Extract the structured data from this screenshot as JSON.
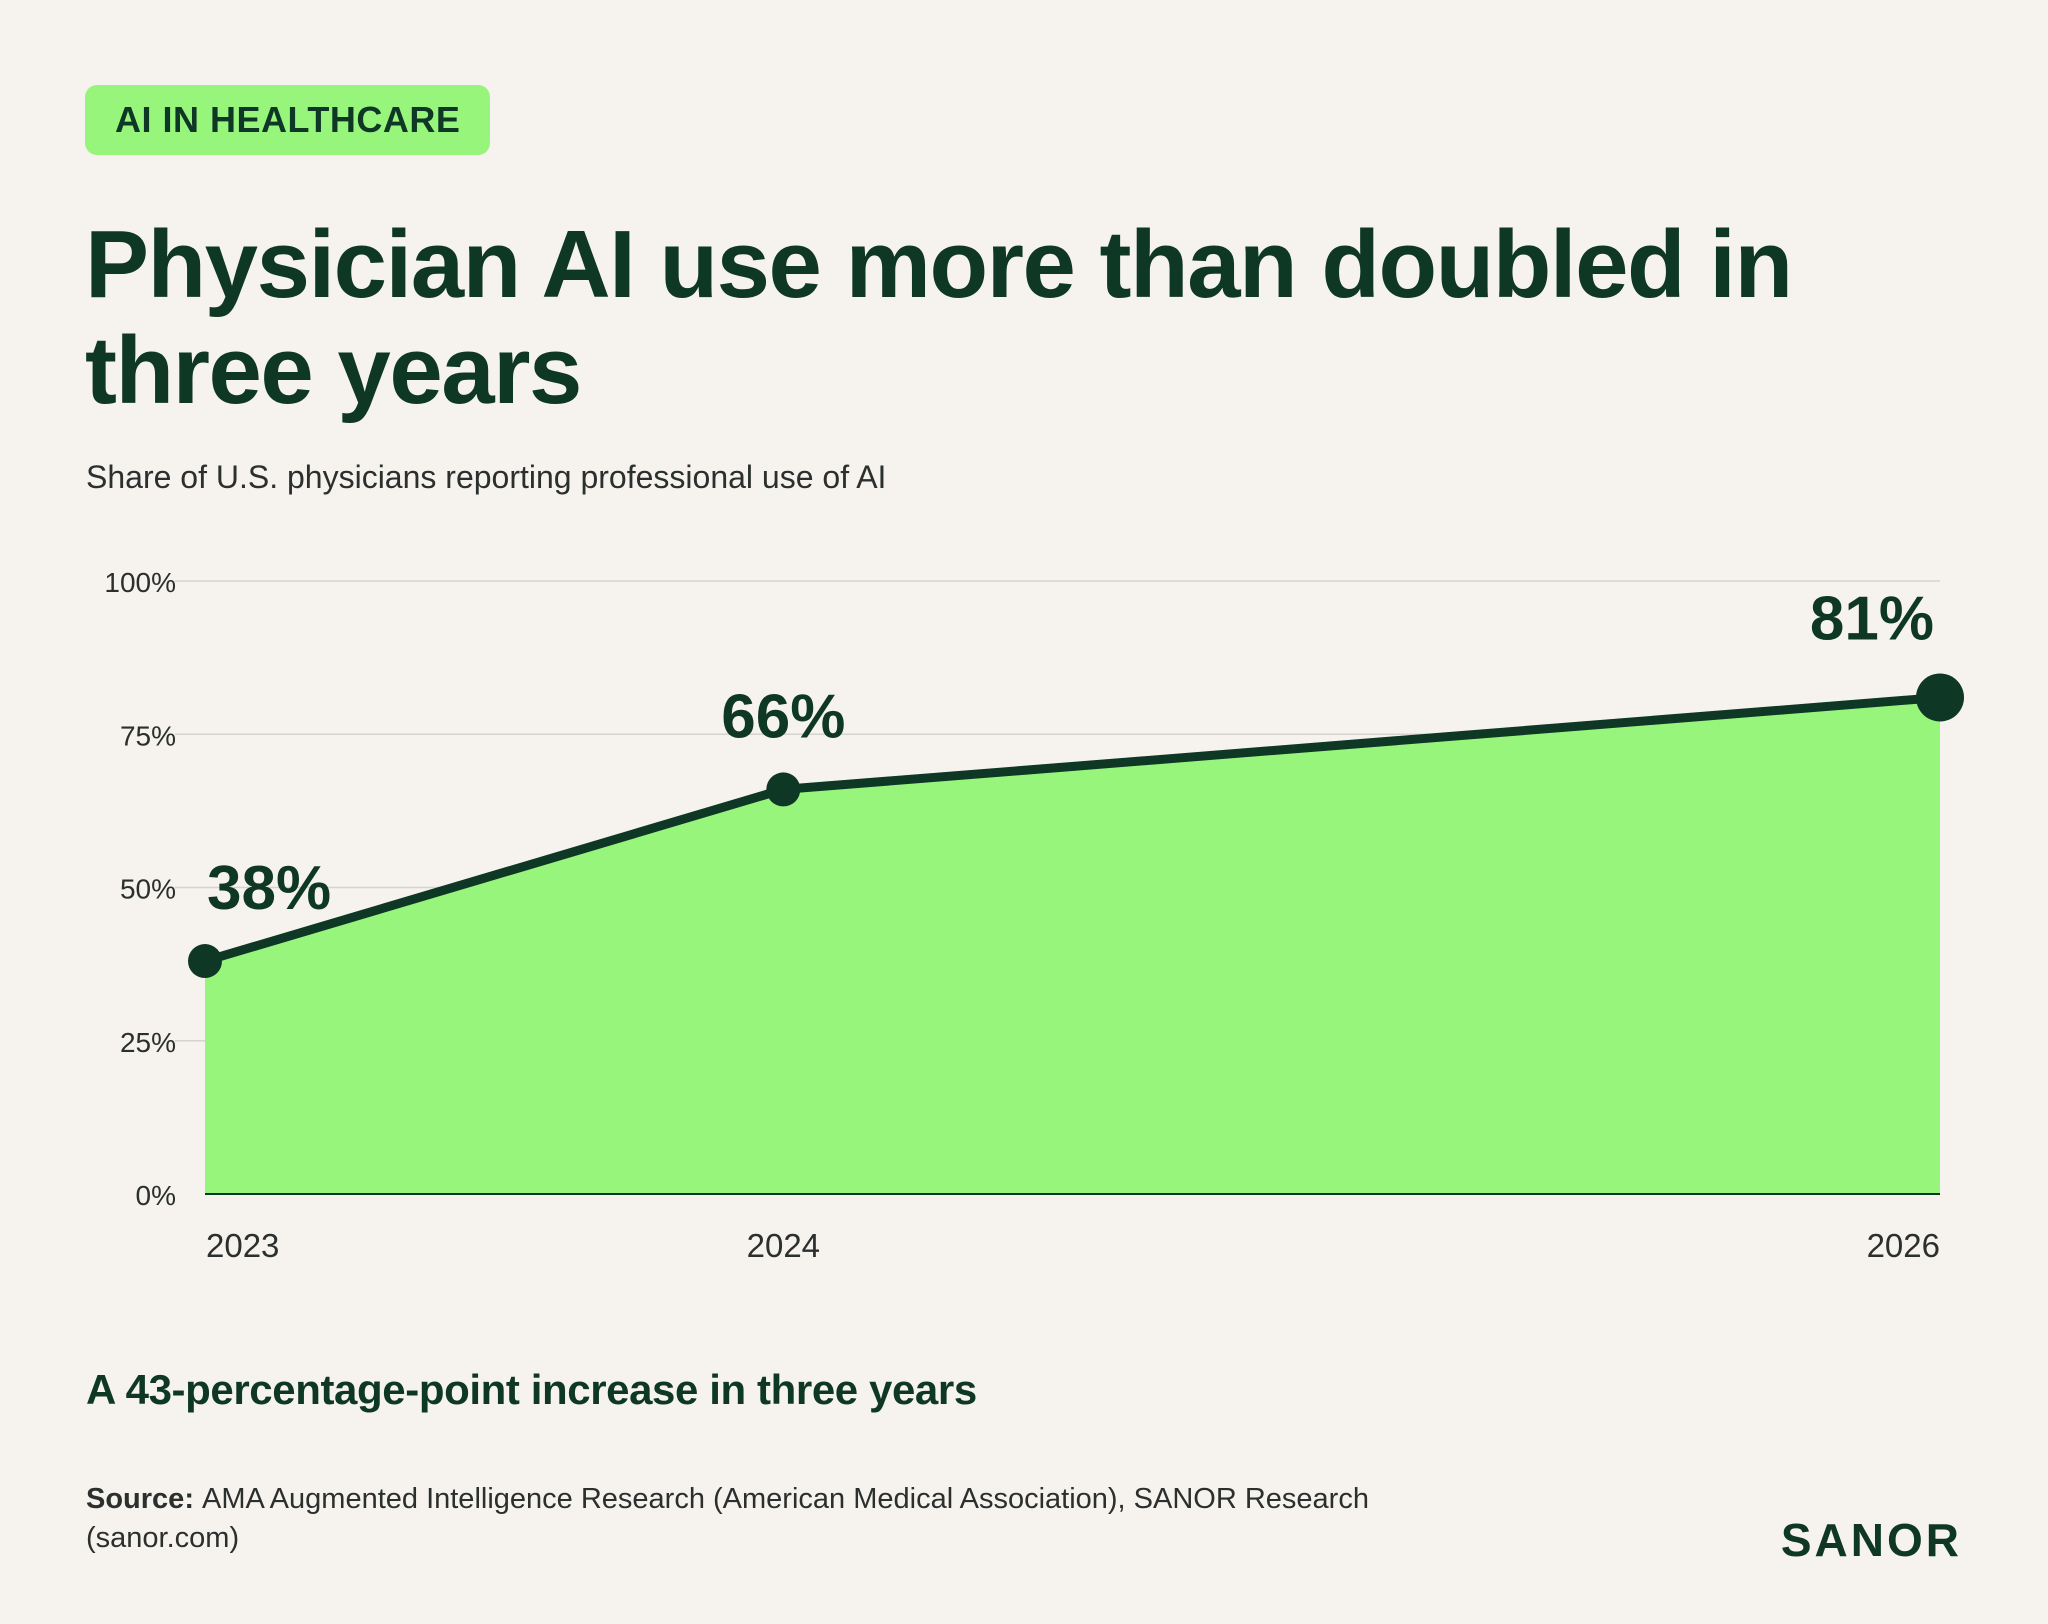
{
  "header": {
    "tag": "AI IN HEALTHCARE",
    "title": "Physician AI use more than doubled in three years",
    "subtitle": "Share of U.S. physicians reporting professional use of AI"
  },
  "takeaway": "A 43-percentage-point increase in three years",
  "source": {
    "label": "Source:",
    "text": "AMA Augmented Intelligence Research (American Medical Association), SANOR Research (sanor.com)"
  },
  "brand": "SANOR",
  "colors": {
    "background": "#f6f3ee",
    "area_fill": "#98f57c",
    "line": "#0f3726",
    "text_dark": "#0f3726",
    "text_muted": "#2b2f2d",
    "gridline": "#d5d3cd"
  },
  "chart_data": {
    "type": "area",
    "x": [
      2023,
      2024,
      2026
    ],
    "x_tick_labels": [
      "2023",
      "2024",
      "2026"
    ],
    "series": [
      {
        "values": [
          38,
          66,
          81
        ],
        "data_labels": [
          "38%",
          "66%",
          "81%"
        ]
      }
    ],
    "ylim": [
      0,
      100
    ],
    "y_ticks": [
      0,
      25,
      50,
      75,
      100
    ],
    "y_tick_labels": [
      "0%",
      "25%",
      "50%",
      "75%",
      "100%"
    ],
    "grid": true
  }
}
